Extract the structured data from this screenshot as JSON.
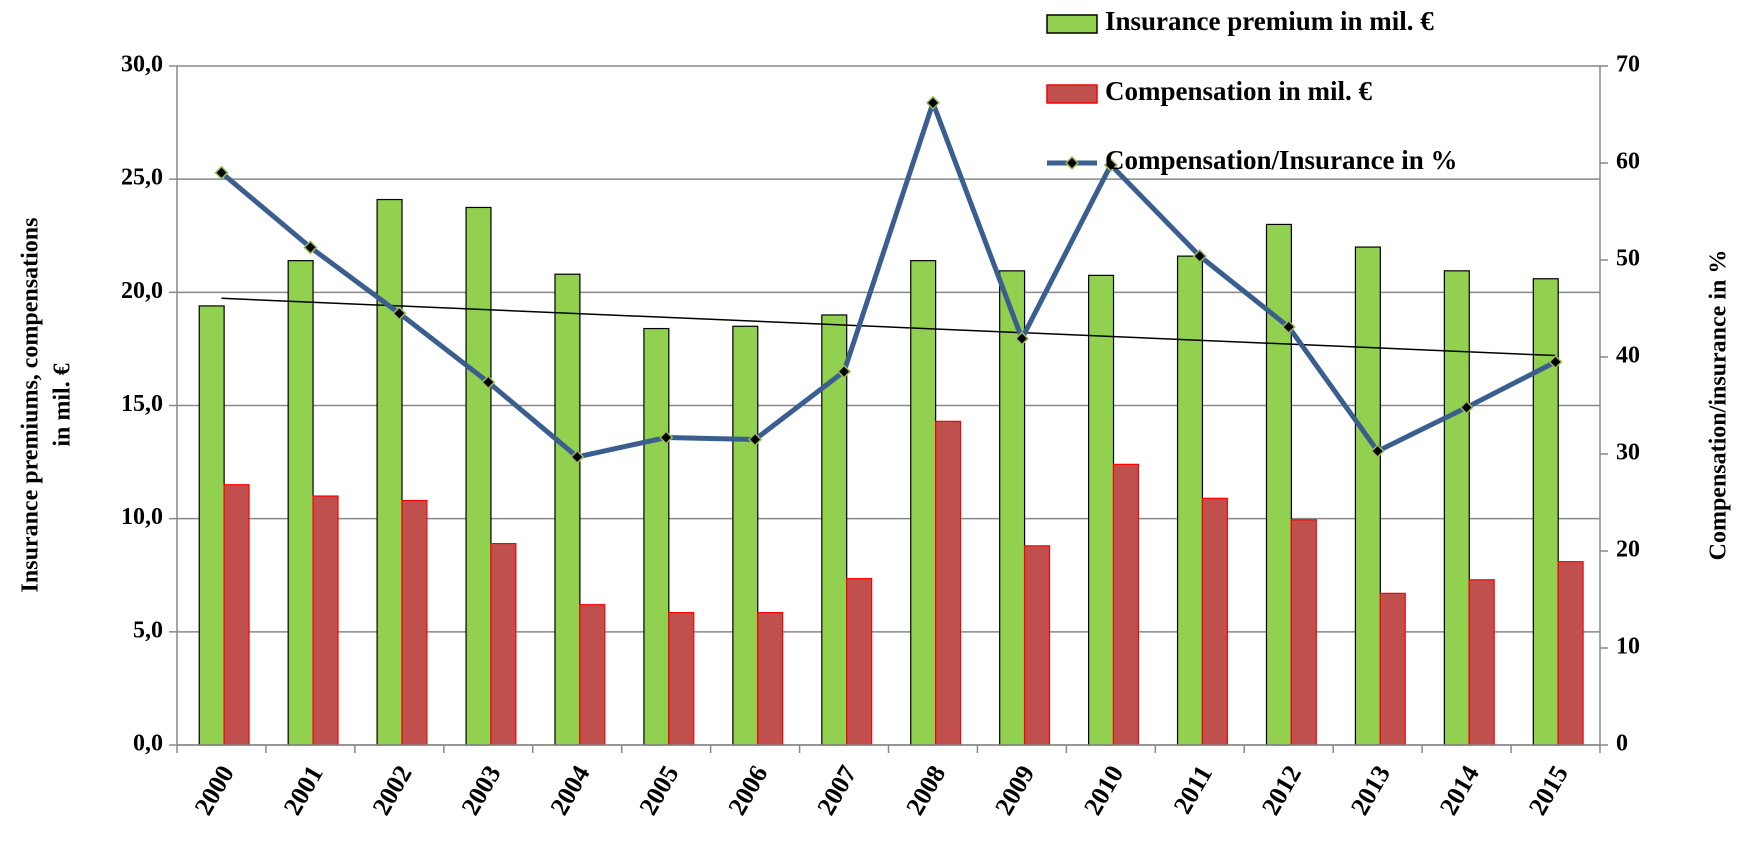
{
  "chart_data": {
    "type": "bar_line",
    "ylabel": [
      "Insurance premiums,  compensations",
      "in mil. €"
    ],
    "y2label": "Compensation/insurance in %",
    "categories": [
      "2000",
      "2001",
      "2002",
      "2003",
      "2004",
      "2005",
      "2006",
      "2007",
      "2008",
      "2009",
      "2010",
      "2011",
      "2012",
      "2013",
      "2014",
      "2015"
    ],
    "series": [
      {
        "name": "Insurance premium in mil. €",
        "type": "bar",
        "color": "#92d050",
        "edge": "#000000",
        "values": [
          19.4,
          21.4,
          24.1,
          23.75,
          20.8,
          18.4,
          18.5,
          19.0,
          21.4,
          20.95,
          20.75,
          21.6,
          23.0,
          22.0,
          20.95,
          20.6
        ]
      },
      {
        "name": "Compensation in  mil. €",
        "type": "bar",
        "color": "#c0504d",
        "edge": "#ff0000",
        "values": [
          11.5,
          11.0,
          10.8,
          8.9,
          6.2,
          5.85,
          5.85,
          7.35,
          14.3,
          8.8,
          12.4,
          10.9,
          9.95,
          6.7,
          7.3,
          8.1
        ]
      },
      {
        "name": "Compensation/Insurance in %",
        "type": "line",
        "axis": "y2",
        "color": "#3a5f8f",
        "marker_color": "#000000",
        "marker_edge": "#9bbb59",
        "values": [
          59.0,
          51.3,
          44.5,
          37.4,
          29.7,
          31.7,
          31.5,
          38.5,
          66.2,
          41.9,
          59.8,
          50.4,
          43.1,
          30.3,
          34.8,
          39.5
        ]
      }
    ],
    "trendline": true,
    "ylim": [
      0,
      30
    ],
    "yticks": [
      {
        "value": 0,
        "label": "0,0"
      },
      {
        "value": 5,
        "label": "5,0"
      },
      {
        "value": 10,
        "label": "10,0"
      },
      {
        "value": 15,
        "label": "15,0"
      },
      {
        "value": 20,
        "label": "20,0"
      },
      {
        "value": 25,
        "label": "25,0"
      },
      {
        "value": 30,
        "label": "30,0"
      }
    ],
    "y2lim": [
      0,
      70
    ],
    "y2ticks": [
      0,
      10,
      20,
      30,
      40,
      50,
      60,
      70
    ],
    "grid": true,
    "legend": "top-right"
  }
}
